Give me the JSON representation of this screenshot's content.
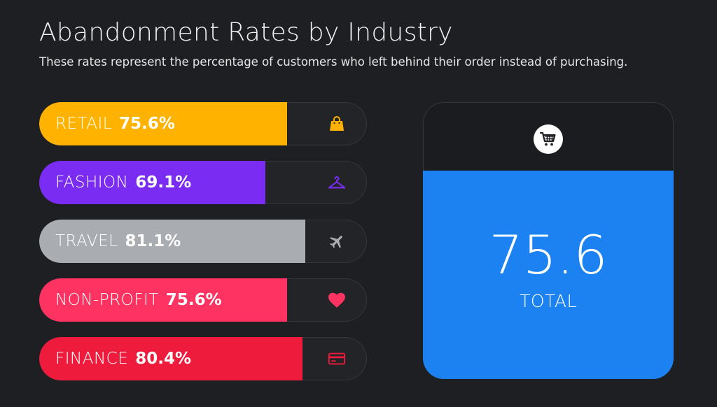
{
  "title": "Abandonment Rates by Industry",
  "subtitle": "These rates represent the percentage of customers who left behind their order instead of purchasing.",
  "chart_data": {
    "type": "bar",
    "orientation": "horizontal",
    "title": "Abandonment Rates by Industry",
    "subtitle": "These rates represent the percentage of customers who left behind their order instead of purchasing.",
    "xlim": [
      0,
      100
    ],
    "grid": false,
    "categories": [
      "RETAIL",
      "FASHION",
      "TRAVEL",
      "NON-PROFIT",
      "FINANCE"
    ],
    "values": [
      75.6,
      69.1,
      81.1,
      75.6,
      80.4
    ],
    "value_labels": [
      "75.6%",
      "69.1%",
      "81.1%",
      "75.6%",
      "80.4%"
    ],
    "colors": [
      "#ffb300",
      "#7a2cf2",
      "#a9acb1",
      "#ff3361",
      "#ee1b3c"
    ],
    "icons": [
      "shopping-bag-icon",
      "hanger-icon",
      "airplane-icon",
      "heart-icon",
      "credit-card-icon"
    ],
    "total": {
      "value": "75.6",
      "label": "TOTAL",
      "color": "#1c82f2",
      "icon": "shopping-cart-icon"
    }
  }
}
